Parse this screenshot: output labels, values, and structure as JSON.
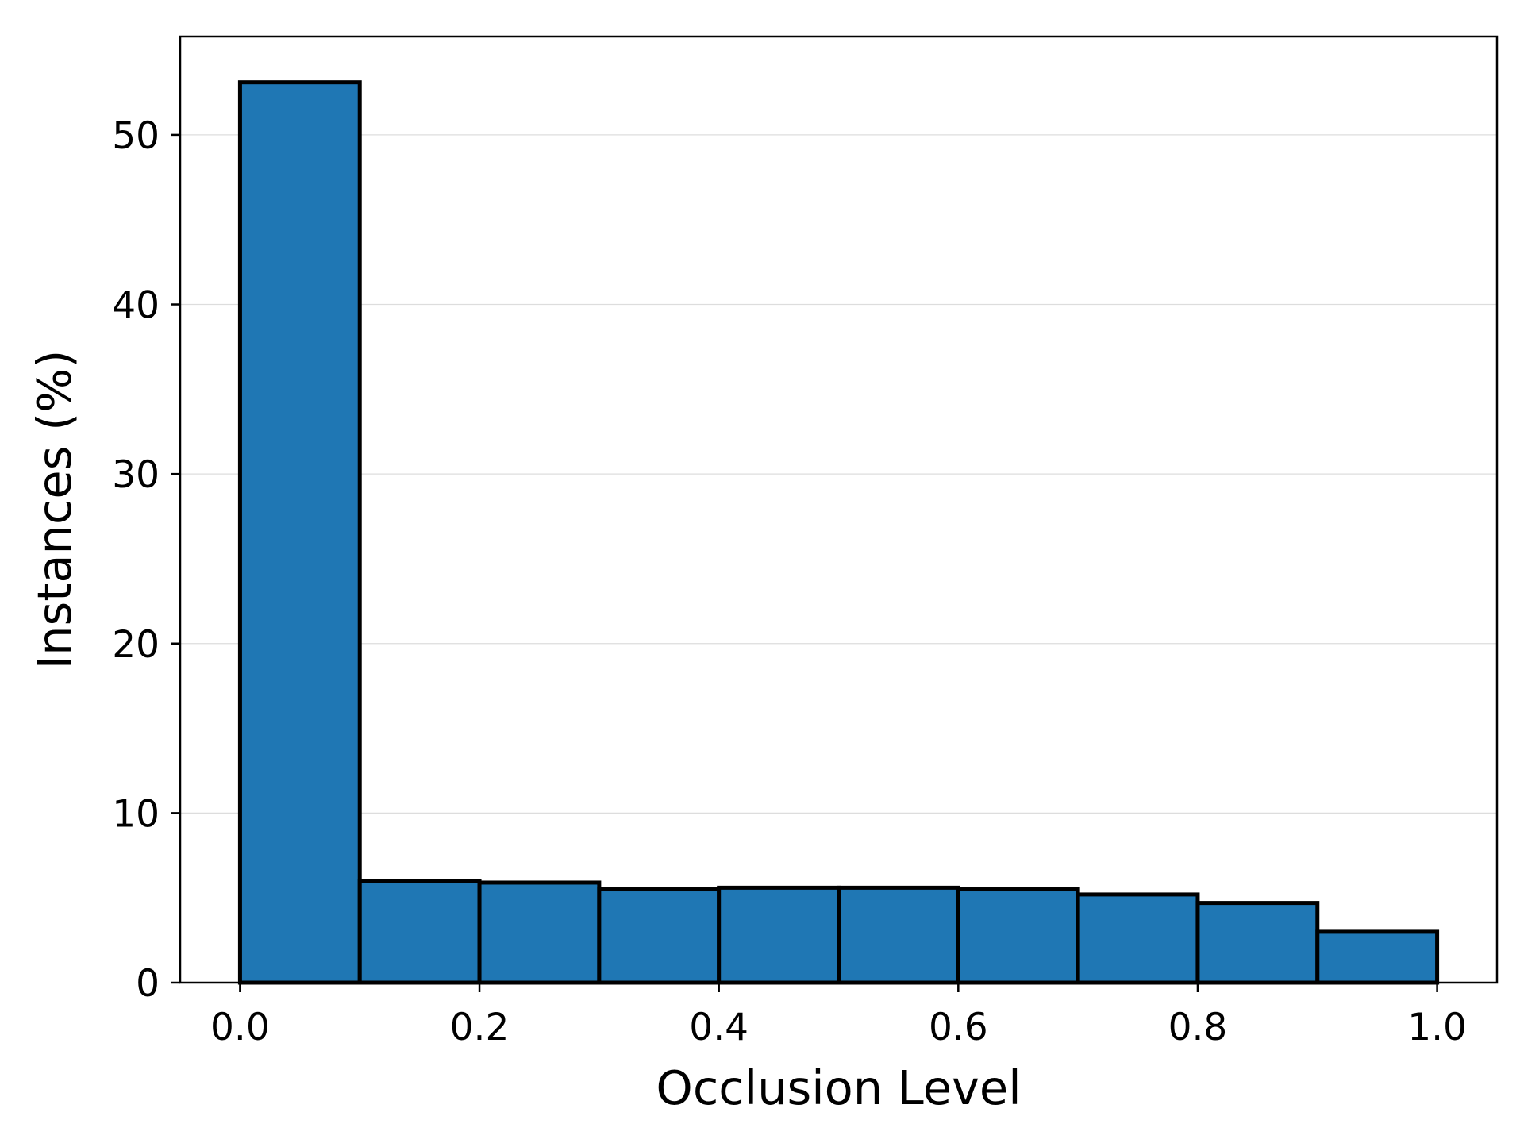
{
  "chart_data": {
    "type": "bar",
    "subtype": "histogram",
    "title": "",
    "xlabel": "Occlusion Level",
    "ylabel": "Instances (%)",
    "bins": [
      {
        "start": 0.0,
        "end": 0.1,
        "value": 53.1
      },
      {
        "start": 0.1,
        "end": 0.2,
        "value": 6.0
      },
      {
        "start": 0.2,
        "end": 0.3,
        "value": 5.9
      },
      {
        "start": 0.3,
        "end": 0.4,
        "value": 5.5
      },
      {
        "start": 0.4,
        "end": 0.5,
        "value": 5.6
      },
      {
        "start": 0.5,
        "end": 0.6,
        "value": 5.6
      },
      {
        "start": 0.6,
        "end": 0.7,
        "value": 5.5
      },
      {
        "start": 0.7,
        "end": 0.8,
        "value": 5.2
      },
      {
        "start": 0.8,
        "end": 0.9,
        "value": 4.7
      },
      {
        "start": 0.9,
        "end": 1.0,
        "value": 3.0
      }
    ],
    "xlim": [
      -0.05,
      1.05
    ],
    "ylim": [
      0,
      55.8
    ],
    "xticks": [
      0.0,
      0.2,
      0.4,
      0.6,
      0.8,
      1.0
    ],
    "xtick_labels": [
      "0.0",
      "0.2",
      "0.4",
      "0.6",
      "0.8",
      "1.0"
    ],
    "yticks": [
      0,
      10,
      20,
      30,
      40,
      50
    ],
    "ytick_labels": [
      "0",
      "10",
      "20",
      "30",
      "40",
      "50"
    ],
    "grid": "y-major",
    "legend": "none",
    "colors": {
      "bar_fill": "#1f77b4",
      "bar_edge": "#000000",
      "grid": "#dddddd",
      "axes": "#000000",
      "background": "#ffffff"
    }
  }
}
